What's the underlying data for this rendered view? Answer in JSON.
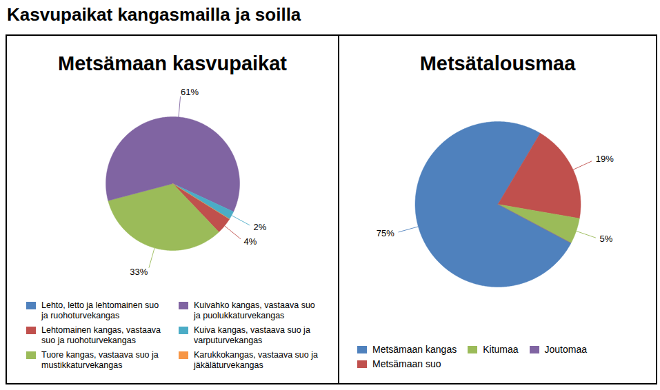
{
  "title": "Kasvupaikat kangasmailla ja soilla",
  "chart_data": [
    {
      "type": "pie",
      "title": "Metsämaan kasvupaikat",
      "categories": [
        "Lehto, letto ja lehtomainen suo ja ruohoturvekangas",
        "Lehtomainen kangas, vastaava suo ja ruohoturvekangas",
        "Tuore kangas, vastaava suo ja mustikkaturvekangas",
        "Kuivahko kangas, vastaava suo ja puolukkaturvekangas",
        "Kuiva kangas, vastaava suo ja varputurvekangas",
        "Karukkokangas, vastaava suo ja jäkäläturvekangas"
      ],
      "values": [
        0,
        4,
        33,
        61,
        2,
        0
      ],
      "value_labels": [
        null,
        "4%",
        "33%",
        "61%",
        "2%",
        null
      ],
      "colors": [
        "#4f81bd",
        "#c0504d",
        "#9bbb59",
        "#8064a2",
        "#4bacc6",
        "#f79646"
      ],
      "data_labels": true,
      "legend": "bottom"
    },
    {
      "type": "pie",
      "title": "Metsätalousmaa",
      "categories": [
        "Metsämaan kangas",
        "Metsämaan suo",
        "Kitumaa",
        "Joutomaa"
      ],
      "values": [
        75,
        19,
        5,
        0
      ],
      "value_labels": [
        "75%",
        "19%",
        "5%",
        null
      ],
      "colors": [
        "#4f81bd",
        "#c0504d",
        "#9bbb59",
        "#8064a2"
      ],
      "data_labels": true,
      "legend": "bottom"
    }
  ]
}
